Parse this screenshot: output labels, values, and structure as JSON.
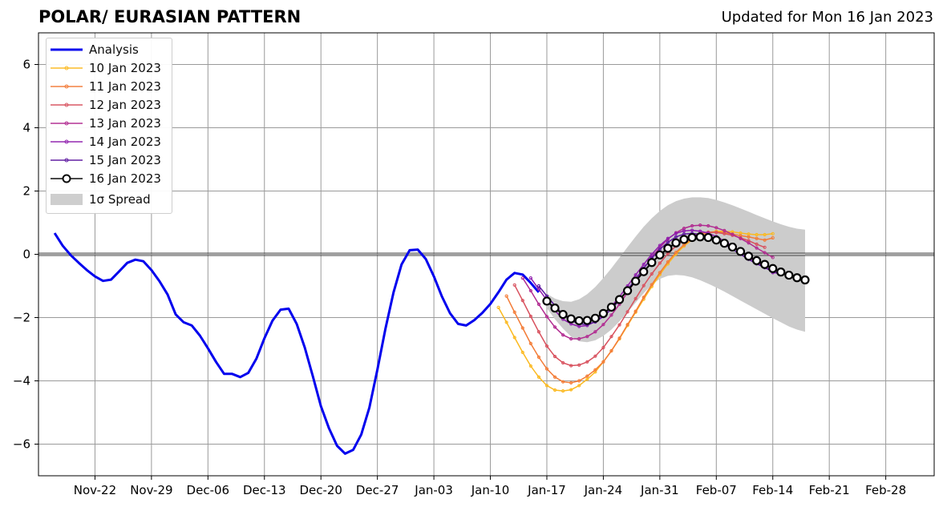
{
  "title": "POLAR/ EURASIAN  PATTERN",
  "subtitle": "Updated for Mon 16 Jan 2023",
  "legend": {
    "analysis": "Analysis",
    "f10": "10 Jan 2023",
    "f11": "11 Jan 2023",
    "f12": "12 Jan 2023",
    "f13": "13 Jan 2023",
    "f14": "14 Jan 2023",
    "f15": "15 Jan 2023",
    "f16": "16 Jan 2023",
    "spread": "1σ Spread"
  },
  "colors": {
    "analysis": "#0000ee",
    "f10": "#fbb91f",
    "f11": "#f37b36",
    "f12": "#d8505d",
    "f13": "#b12a90",
    "f14": "#8f1ead",
    "f15": "#5c17a0",
    "f16": "#000000",
    "spread": "#cccccc",
    "grid": "#9a9a9a"
  },
  "chart_data": {
    "type": "line",
    "title": "POLAR/ EURASIAN  PATTERN",
    "xlabel": "",
    "ylabel": "",
    "xlim": [
      "2022-11-15",
      "2023-03-06"
    ],
    "ylim": [
      -7,
      7
    ],
    "grid": true,
    "legend_position": "top-left",
    "x_ticks": [
      "Nov-22",
      "Nov-29",
      "Dec-06",
      "Dec-13",
      "Dec-20",
      "Dec-27",
      "Jan-03",
      "Jan-10",
      "Jan-17",
      "Jan-24",
      "Jan-31",
      "Feb-07",
      "Feb-14",
      "Feb-21",
      "Feb-28"
    ],
    "y_ticks": [
      "−6",
      "−4",
      "−2",
      "0",
      "2",
      "4",
      "6"
    ],
    "y_tick_values": [
      -6,
      -4,
      -2,
      0,
      2,
      4,
      6
    ],
    "analysis": {
      "name": "Analysis",
      "start": "2022-11-17",
      "values": [
        0.67,
        0.27,
        -0.03,
        -0.27,
        -0.5,
        -0.7,
        -0.84,
        -0.8,
        -0.54,
        -0.27,
        -0.17,
        -0.22,
        -0.5,
        -0.85,
        -1.27,
        -1.9,
        -2.15,
        -2.25,
        -2.57,
        -2.97,
        -3.4,
        -3.78,
        -3.78,
        -3.88,
        -3.75,
        -3.3,
        -2.65,
        -2.1,
        -1.75,
        -1.72,
        -2.2,
        -2.95,
        -3.85,
        -4.8,
        -5.5,
        -6.05,
        -6.3,
        -6.18,
        -5.7,
        -4.85,
        -3.65,
        -2.35,
        -1.2,
        -0.32,
        0.13,
        0.15,
        -0.15,
        -0.7,
        -1.34,
        -1.86,
        -2.2,
        -2.25,
        -2.08,
        -1.85,
        -1.57,
        -1.2,
        -0.8,
        -0.59,
        -0.64,
        -0.9,
        -1.2
      ]
    },
    "forecasts": [
      {
        "name": "10 Jan 2023",
        "start": "2023-01-11",
        "values": [
          -1.68,
          -2.15,
          -2.63,
          -3.1,
          -3.53,
          -3.88,
          -4.15,
          -4.29,
          -4.32,
          -4.28,
          -4.15,
          -3.95,
          -3.72,
          -3.4,
          -3.05,
          -2.67,
          -2.25,
          -1.83,
          -1.42,
          -1.02,
          -0.64,
          -0.3,
          0.01,
          0.26,
          0.46,
          0.6,
          0.69,
          0.73,
          0.73,
          0.71,
          0.67,
          0.64,
          0.62,
          0.62,
          0.65
        ]
      },
      {
        "name": "11 Jan 2023",
        "start": "2023-01-12",
        "values": [
          -1.32,
          -1.83,
          -2.33,
          -2.82,
          -3.25,
          -3.62,
          -3.88,
          -4.03,
          -4.06,
          -4.0,
          -3.85,
          -3.65,
          -3.4,
          -3.05,
          -2.65,
          -2.22,
          -1.8,
          -1.36,
          -0.96,
          -0.58,
          -0.24,
          0.06,
          0.3,
          0.49,
          0.61,
          0.68,
          0.7,
          0.68,
          0.64,
          0.59,
          0.55,
          0.5,
          0.45,
          0.52
        ]
      },
      {
        "name": "12 Jan 2023",
        "start": "2023-01-13",
        "values": [
          -0.97,
          -1.46,
          -1.96,
          -2.45,
          -2.9,
          -3.23,
          -3.43,
          -3.52,
          -3.5,
          -3.4,
          -3.22,
          -2.95,
          -2.6,
          -2.23,
          -1.82,
          -1.4,
          -0.99,
          -0.62,
          -0.28,
          0.02,
          0.26,
          0.45,
          0.59,
          0.67,
          0.7,
          0.69,
          0.65,
          0.6,
          0.52,
          0.43,
          0.32,
          0.22
        ]
      },
      {
        "name": "13 Jan 2023",
        "start": "2023-01-14",
        "values": [
          -0.75,
          -1.15,
          -1.58,
          -1.97,
          -2.3,
          -2.55,
          -2.67,
          -2.67,
          -2.6,
          -2.45,
          -2.22,
          -1.92,
          -1.58,
          -1.2,
          -0.83,
          -0.45,
          -0.1,
          0.22,
          0.48,
          0.68,
          0.82,
          0.9,
          0.92,
          0.9,
          0.84,
          0.75,
          0.63,
          0.5,
          0.36,
          0.2,
          0.05,
          -0.1
        ]
      },
      {
        "name": "14 Jan 2023",
        "start": "2023-01-15",
        "values": [
          -0.75,
          -1.1,
          -1.45,
          -1.78,
          -2.05,
          -2.2,
          -2.28,
          -2.25,
          -2.12,
          -1.92,
          -1.65,
          -1.34,
          -1.0,
          -0.65,
          -0.32,
          0.0,
          0.28,
          0.5,
          0.66,
          0.74,
          0.76,
          0.73,
          0.67,
          0.56,
          0.42,
          0.26,
          0.08,
          -0.1,
          -0.26,
          -0.38,
          -0.58,
          -0.6
        ]
      },
      {
        "name": "15 Jan 2023",
        "start": "2023-01-16",
        "values": [
          -1.0,
          -1.32,
          -1.62,
          -1.9,
          -2.1,
          -2.2,
          -2.22,
          -2.14,
          -1.97,
          -1.73,
          -1.45,
          -1.12,
          -0.78,
          -0.44,
          -0.12,
          0.16,
          0.38,
          0.55,
          0.64,
          0.66,
          0.63,
          0.56,
          0.45,
          0.32,
          0.16,
          0.0,
          -0.16,
          -0.3,
          -0.42,
          -0.55,
          -0.62
        ]
      },
      {
        "name": "16 Jan 2023",
        "start": "2023-01-17",
        "values": [
          -1.48,
          -1.7,
          -1.9,
          -2.04,
          -2.1,
          -2.09,
          -2.02,
          -1.87,
          -1.67,
          -1.43,
          -1.15,
          -0.85,
          -0.55,
          -0.26,
          -0.02,
          0.19,
          0.36,
          0.47,
          0.53,
          0.55,
          0.53,
          0.45,
          0.35,
          0.23,
          0.09,
          -0.06,
          -0.2,
          -0.32,
          -0.45,
          -0.56,
          -0.66,
          -0.74,
          -0.81
        ]
      }
    ],
    "spread": {
      "name": "1σ Spread",
      "start": "2023-01-17",
      "upper": [
        -1.25,
        -1.4,
        -1.48,
        -1.5,
        -1.42,
        -1.26,
        -1.03,
        -0.75,
        -0.44,
        -0.11,
        0.23,
        0.56,
        0.87,
        1.14,
        1.37,
        1.55,
        1.68,
        1.76,
        1.8,
        1.8,
        1.78,
        1.72,
        1.64,
        1.55,
        1.45,
        1.35,
        1.24,
        1.14,
        1.04,
        0.95,
        0.87,
        0.81,
        0.78
      ],
      "lower": [
        -1.7,
        -2.05,
        -2.35,
        -2.6,
        -2.75,
        -2.78,
        -2.72,
        -2.58,
        -2.38,
        -2.12,
        -1.83,
        -1.53,
        -1.23,
        -0.96,
        -0.78,
        -0.68,
        -0.65,
        -0.67,
        -0.73,
        -0.82,
        -0.93,
        -1.05,
        -1.18,
        -1.32,
        -1.46,
        -1.6,
        -1.74,
        -1.88,
        -2.02,
        -2.15,
        -2.28,
        -2.38,
        -2.45
      ]
    }
  }
}
